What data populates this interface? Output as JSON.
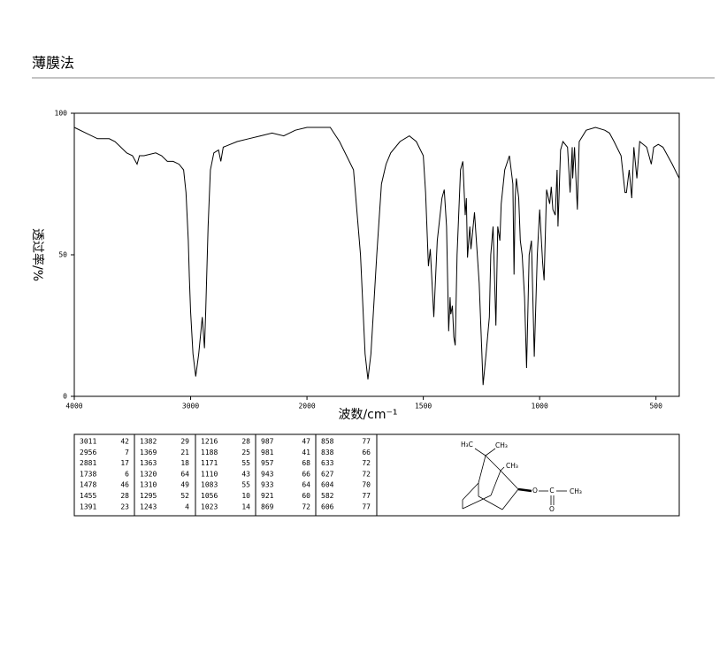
{
  "header": {
    "title": "薄膜法"
  },
  "chart_data": {
    "type": "line",
    "color": "#000000",
    "xlabel": "波数/cm⁻¹",
    "ylabel": "透过率/%",
    "xlim": [
      4000,
      400
    ],
    "xticks": [
      4000,
      3000,
      2000,
      1500,
      1000,
      500
    ],
    "ylim": [
      0,
      100
    ],
    "yticks": [
      0,
      50,
      100
    ],
    "x": [
      4000,
      3900,
      3800,
      3700,
      3650,
      3600,
      3550,
      3500,
      3460,
      3440,
      3400,
      3300,
      3250,
      3200,
      3150,
      3100,
      3060,
      3040,
      3020,
      3011,
      3000,
      2980,
      2956,
      2930,
      2900,
      2881,
      2870,
      2850,
      2830,
      2800,
      2760,
      2740,
      2720,
      2600,
      2500,
      2400,
      2300,
      2200,
      2100,
      2000,
      1900,
      1860,
      1800,
      1770,
      1750,
      1738,
      1725,
      1700,
      1680,
      1660,
      1640,
      1600,
      1560,
      1530,
      1500,
      1490,
      1478,
      1470,
      1455,
      1440,
      1420,
      1410,
      1400,
      1391,
      1385,
      1382,
      1375,
      1369,
      1363,
      1355,
      1340,
      1330,
      1320,
      1315,
      1310,
      1300,
      1295,
      1280,
      1260,
      1243,
      1230,
      1216,
      1210,
      1200,
      1188,
      1180,
      1171,
      1165,
      1150,
      1130,
      1115,
      1110,
      1105,
      1100,
      1090,
      1083,
      1075,
      1065,
      1056,
      1045,
      1035,
      1023,
      1010,
      1000,
      987,
      981,
      970,
      957,
      950,
      943,
      933,
      925,
      921,
      910,
      900,
      880,
      869,
      860,
      858,
      850,
      838,
      830,
      800,
      760,
      720,
      700,
      680,
      650,
      633,
      627,
      615,
      604,
      595,
      582,
      570,
      540,
      520,
      510,
      490,
      470,
      430,
      400
    ],
    "values": [
      95,
      93,
      91,
      91,
      90,
      88,
      86,
      85,
      82,
      85,
      85,
      86,
      85,
      83,
      83,
      82,
      80,
      72,
      55,
      42,
      30,
      15,
      7,
      15,
      28,
      17,
      30,
      60,
      80,
      86,
      87,
      83,
      88,
      90,
      91,
      92,
      93,
      92,
      94,
      95,
      95,
      90,
      80,
      50,
      15,
      6,
      15,
      50,
      75,
      82,
      86,
      90,
      92,
      90,
      85,
      72,
      46,
      52,
      28,
      55,
      70,
      73,
      60,
      23,
      35,
      29,
      32,
      21,
      18,
      50,
      80,
      83,
      64,
      70,
      49,
      60,
      52,
      65,
      40,
      4,
      15,
      28,
      50,
      60,
      25,
      60,
      55,
      68,
      80,
      85,
      75,
      43,
      70,
      77,
      70,
      55,
      50,
      35,
      10,
      50,
      55,
      14,
      50,
      66,
      47,
      41,
      73,
      68,
      74,
      66,
      64,
      80,
      60,
      87,
      90,
      88,
      72,
      88,
      77,
      88,
      66,
      90,
      94,
      95,
      94,
      93,
      90,
      85,
      72,
      72,
      80,
      70,
      88,
      77,
      90,
      88,
      82,
      88,
      89,
      88,
      82,
      77
    ]
  },
  "peak_table": [
    [
      [
        3011,
        42
      ],
      [
        2956,
        7
      ],
      [
        2881,
        17
      ],
      [
        1738,
        6
      ],
      [
        1478,
        46
      ],
      [
        1455,
        28
      ],
      [
        1391,
        23
      ]
    ],
    [
      [
        1382,
        29
      ],
      [
        1369,
        21
      ],
      [
        1363,
        18
      ],
      [
        1320,
        64
      ],
      [
        1310,
        49
      ],
      [
        1295,
        52
      ],
      [
        1243,
        4
      ]
    ],
    [
      [
        1216,
        28
      ],
      [
        1188,
        25
      ],
      [
        1171,
        55
      ],
      [
        1110,
        43
      ],
      [
        1083,
        55
      ],
      [
        1056,
        10
      ],
      [
        1023,
        14
      ]
    ],
    [
      [
        987,
        47
      ],
      [
        981,
        41
      ],
      [
        957,
        68
      ],
      [
        943,
        66
      ],
      [
        933,
        64
      ],
      [
        921,
        60
      ],
      [
        869,
        72
      ]
    ],
    [
      [
        858,
        77
      ],
      [
        838,
        66
      ],
      [
        633,
        72
      ],
      [
        627,
        72
      ],
      [
        604,
        70
      ],
      [
        582,
        77
      ],
      [
        606,
        77
      ]
    ]
  ],
  "structure": {
    "labels": [
      "H₃C",
      "CH₃",
      "CH₃",
      "O",
      "C",
      "CH₃",
      "O"
    ]
  }
}
